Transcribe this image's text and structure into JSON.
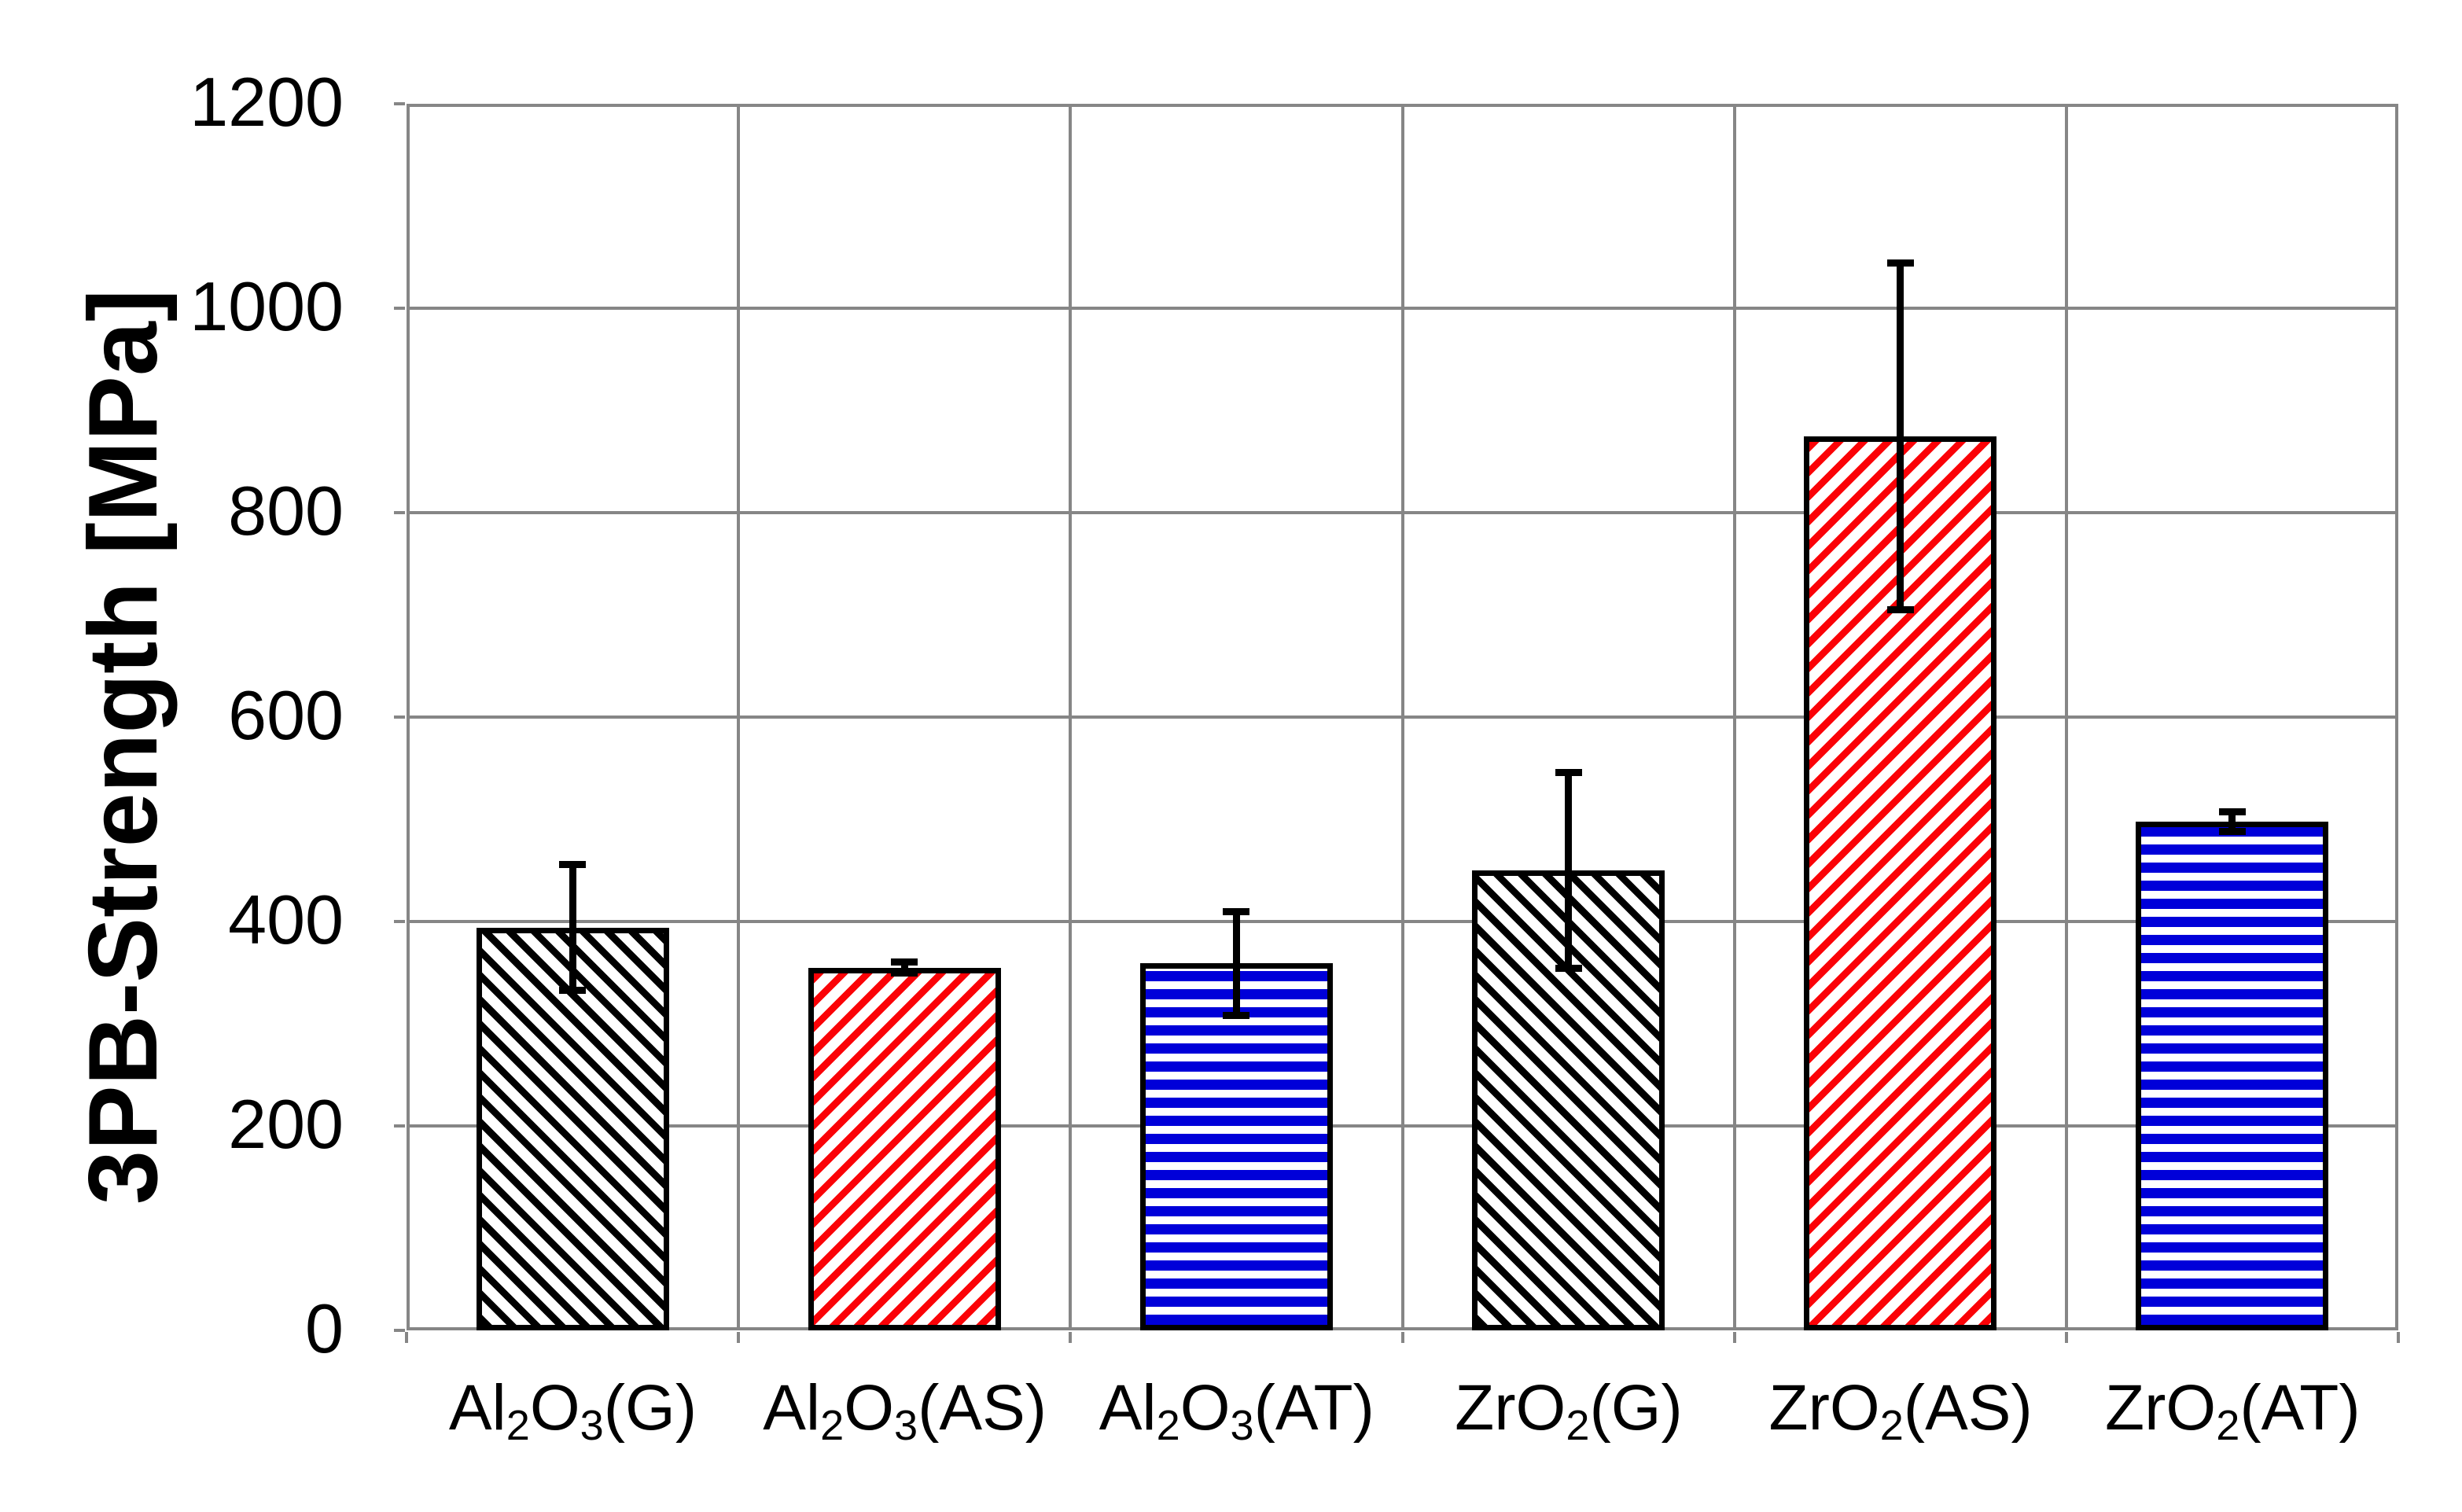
{
  "chart_data": {
    "type": "bar",
    "title": "",
    "ylabel": "3PB-Strength [MPa]",
    "xlabel": "",
    "ylim": [
      0,
      1200
    ],
    "yticks": [
      0,
      200,
      400,
      600,
      800,
      1000,
      1200
    ],
    "grid": true,
    "legend_position": "none",
    "categories": [
      "Al2O3(G)",
      "Al2O3(AS)",
      "Al2O3(AT)",
      "ZrO2(G)",
      "ZrO2(AS)",
      "ZrO2(AT)"
    ],
    "category_segments": [
      [
        {
          "t": "Al"
        },
        {
          "t": "2",
          "sub": true
        },
        {
          "t": "O"
        },
        {
          "t": "3",
          "sub": true
        },
        {
          "t": "(G)"
        }
      ],
      [
        {
          "t": "Al"
        },
        {
          "t": "2",
          "sub": true
        },
        {
          "t": "O"
        },
        {
          "t": "3",
          "sub": true
        },
        {
          "t": "(AS)"
        }
      ],
      [
        {
          "t": "Al"
        },
        {
          "t": "2",
          "sub": true
        },
        {
          "t": "O"
        },
        {
          "t": "3",
          "sub": true
        },
        {
          "t": "(AT)"
        }
      ],
      [
        {
          "t": "ZrO"
        },
        {
          "t": "2",
          "sub": true
        },
        {
          "t": "(G)"
        }
      ],
      [
        {
          "t": "ZrO"
        },
        {
          "t": "2",
          "sub": true
        },
        {
          "t": "(AS)"
        }
      ],
      [
        {
          "t": "ZrO"
        },
        {
          "t": "2",
          "sub": true
        },
        {
          "t": "(AT)"
        }
      ]
    ],
    "series": [
      {
        "name": "3PB-Strength",
        "values": [
          394,
          355,
          359,
          450,
          875,
          498
        ],
        "errors": [
          62,
          6,
          51,
          96,
          170,
          10
        ]
      }
    ],
    "bar_styles": [
      {
        "color": "#000000",
        "hatch": "diagonal-down"
      },
      {
        "color": "#FB0207",
        "hatch": "diagonal-up"
      },
      {
        "color": "#0000D9",
        "hatch": "horizontal"
      },
      {
        "color": "#000000",
        "hatch": "diagonal-down"
      },
      {
        "color": "#FB0207",
        "hatch": "diagonal-up"
      },
      {
        "color": "#0000D9",
        "hatch": "horizontal"
      }
    ],
    "colors": {
      "grid": "#868686",
      "axis": "#868686",
      "error_bar": "#000000",
      "background": "#FFFFFF",
      "text": "#000000"
    },
    "error_bar_caps": true
  }
}
